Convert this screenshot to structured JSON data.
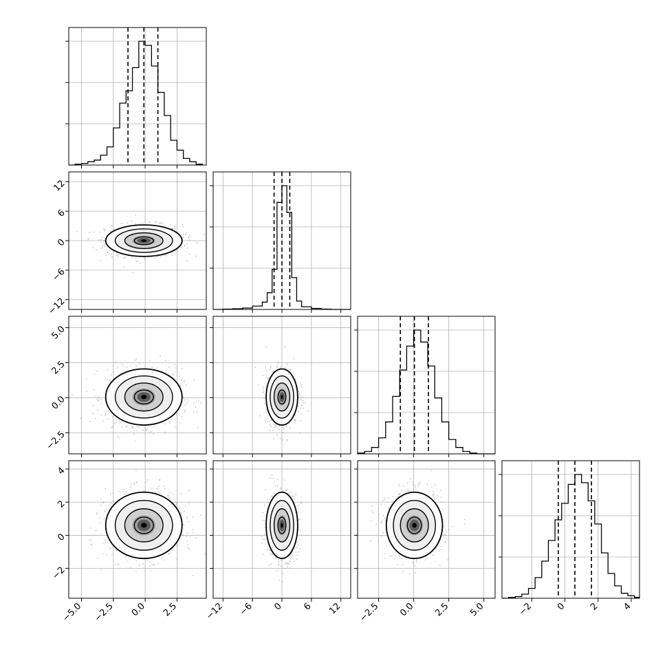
{
  "chart_data": {
    "type": "corner",
    "grid": true,
    "n_params": 4,
    "params": [
      {
        "range": [
          -6.0,
          4.8
        ],
        "ticks": [
          -5.0,
          -2.5,
          0.0,
          2.5
        ],
        "tick_labels": [
          "−5.0",
          "−2.5",
          "0.0",
          "2.5"
        ],
        "quantiles": [
          -1.35,
          -0.1,
          1.0
        ]
      },
      {
        "range": [
          -14.0,
          14.0
        ],
        "ticks": [
          -12,
          -6,
          0,
          6,
          12
        ],
        "tick_labels": [
          "−12",
          "−6",
          "0",
          "6",
          "12"
        ],
        "quantiles": [
          -1.6,
          0.0,
          1.6
        ]
      },
      {
        "range": [
          -4.0,
          5.8
        ],
        "ticks": [
          -2.5,
          0.0,
          2.5,
          5.0
        ],
        "tick_labels": [
          "−2.5",
          "0.0",
          "2.5",
          "5.0"
        ],
        "quantiles": [
          -0.95,
          0.05,
          1.05
        ]
      },
      {
        "range": [
          -3.8,
          4.5
        ],
        "ticks": [
          -2,
          0,
          2,
          4
        ],
        "tick_labels": [
          "−2",
          "0",
          "2",
          "4"
        ],
        "quantiles": [
          -0.4,
          0.6,
          1.6
        ]
      }
    ],
    "histograms": [
      {
        "param": 0,
        "bins": [
          -6.0,
          -5.5,
          -5.0,
          -4.5,
          -4.0,
          -3.5,
          -3.0,
          -2.5,
          -2.0,
          -1.5,
          -1.0,
          -0.5,
          0.0,
          0.5,
          1.0,
          1.5,
          2.0,
          2.5,
          3.0,
          3.5,
          4.0,
          4.5
        ],
        "counts": [
          0,
          1,
          2,
          4,
          6,
          12,
          22,
          45,
          75,
          90,
          118,
          150,
          145,
          120,
          88,
          60,
          30,
          18,
          8,
          4,
          1
        ]
      },
      {
        "param": 1,
        "bins": [
          -14,
          -12,
          -10,
          -8,
          -6,
          -4,
          -3,
          -2,
          -1,
          0,
          1,
          2,
          3,
          4,
          6,
          8,
          10,
          12,
          14
        ],
        "counts": [
          0,
          1,
          2,
          4,
          10,
          22,
          50,
          120,
          320,
          370,
          290,
          95,
          25,
          8,
          3,
          1,
          0,
          0
        ]
      },
      {
        "param": 2,
        "bins": [
          -4.0,
          -3.5,
          -3.0,
          -2.5,
          -2.0,
          -1.5,
          -1.0,
          -0.5,
          0.0,
          0.5,
          1.0,
          1.5,
          2.0,
          2.5,
          3.0,
          3.5,
          4.0,
          4.5,
          5.0,
          5.8
        ],
        "counts": [
          1,
          3,
          8,
          20,
          40,
          72,
          105,
          135,
          155,
          140,
          110,
          70,
          40,
          18,
          8,
          3,
          1,
          0,
          0
        ]
      },
      {
        "param": 3,
        "bins": [
          -3.8,
          -3.4,
          -3.0,
          -2.6,
          -2.2,
          -1.8,
          -1.4,
          -1.0,
          -0.6,
          -0.2,
          0.2,
          0.6,
          1.0,
          1.4,
          1.8,
          2.2,
          2.6,
          3.0,
          3.4,
          3.8,
          4.2,
          4.5
        ],
        "counts": [
          0,
          1,
          2,
          5,
          12,
          25,
          45,
          70,
          95,
          115,
          138,
          150,
          140,
          118,
          90,
          55,
          30,
          15,
          6,
          3,
          1
        ]
      }
    ],
    "pairs": [
      {
        "x_param": 0,
        "y_param": 1,
        "center": [
          -0.1,
          0.0
        ],
        "sigma": [
          1.5,
          1.6
        ],
        "rho": 0.0
      },
      {
        "x_param": 0,
        "y_param": 2,
        "center": [
          -0.1,
          0.05
        ],
        "sigma": [
          1.5,
          1.0
        ],
        "rho": 0.0
      },
      {
        "x_param": 1,
        "y_param": 2,
        "center": [
          0.0,
          0.05
        ],
        "sigma": [
          1.6,
          1.0
        ],
        "rho": 0.0
      },
      {
        "x_param": 0,
        "y_param": 3,
        "center": [
          -0.1,
          0.6
        ],
        "sigma": [
          1.5,
          1.0
        ],
        "rho": 0.0
      },
      {
        "x_param": 1,
        "y_param": 3,
        "center": [
          0.0,
          0.6
        ],
        "sigma": [
          1.6,
          1.0
        ],
        "rho": 0.0
      },
      {
        "x_param": 2,
        "y_param": 3,
        "center": [
          0.05,
          0.6
        ],
        "sigma": [
          1.0,
          1.0
        ],
        "rho": 0.0
      }
    ],
    "contour_levels_sigma": [
      0.5,
      1.0,
      1.5,
      2.0
    ]
  }
}
